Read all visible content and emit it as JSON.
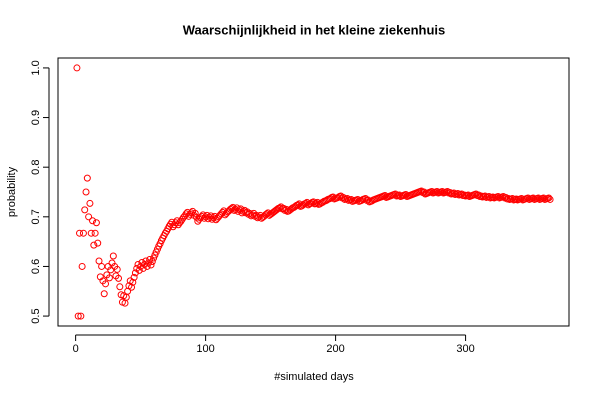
{
  "chart_data": {
    "type": "scatter",
    "title": "Waarschijnlijkheid in het kleine ziekenhuis",
    "x_label": "#simulated days",
    "y_label": "probability",
    "color": "#ff0000",
    "xlim": [
      -13.56,
      379.56
    ],
    "ylim": [
      0.48,
      1.02
    ],
    "xticks": [
      0,
      100,
      200,
      300
    ],
    "yticks": [
      0.5,
      0.6,
      0.7,
      0.8,
      0.9,
      {
        "value": 1,
        "label": "1.0"
      }
    ],
    "x": [
      1,
      2,
      3,
      4,
      5,
      6,
      7,
      8,
      9,
      10,
      11,
      12,
      13,
      14,
      15,
      16,
      17,
      18,
      19,
      20,
      21,
      22,
      23,
      24,
      25,
      26,
      27,
      28,
      29,
      30,
      31,
      32,
      33,
      34,
      35,
      36,
      37,
      38,
      39,
      40,
      41,
      42,
      43,
      44,
      45,
      46,
      47,
      48,
      49,
      50,
      51,
      52,
      53,
      54,
      55,
      56,
      57,
      58,
      59,
      60,
      61,
      62,
      63,
      64,
      65,
      66,
      67,
      68,
      69,
      70,
      71,
      72,
      73,
      74,
      75,
      76,
      77,
      78,
      79,
      80,
      81,
      82,
      83,
      84,
      85,
      86,
      87,
      88,
      89,
      90,
      91,
      92,
      93,
      94,
      95,
      96,
      97,
      98,
      99,
      100,
      101,
      102,
      103,
      104,
      105,
      106,
      107,
      108,
      109,
      110,
      111,
      112,
      113,
      114,
      115,
      116,
      117,
      118,
      119,
      120,
      121,
      122,
      123,
      124,
      125,
      126,
      127,
      128,
      129,
      130,
      131,
      132,
      133,
      134,
      135,
      136,
      137,
      138,
      139,
      140,
      141,
      142,
      143,
      144,
      145,
      146,
      147,
      148,
      149,
      150,
      151,
      152,
      153,
      154,
      155,
      156,
      157,
      158,
      159,
      160,
      161,
      162,
      163,
      164,
      165,
      166,
      167,
      168,
      169,
      170,
      171,
      172,
      173,
      174,
      175,
      176,
      177,
      178,
      179,
      180,
      181,
      182,
      183,
      184,
      185,
      186,
      187,
      188,
      189,
      190,
      191,
      192,
      193,
      194,
      195,
      196,
      197,
      198,
      199,
      200,
      201,
      202,
      203,
      204,
      205,
      206,
      207,
      208,
      209,
      210,
      211,
      212,
      213,
      214,
      215,
      216,
      217,
      218,
      219,
      220,
      221,
      222,
      223,
      224,
      225,
      226,
      227,
      228,
      229,
      230,
      231,
      232,
      233,
      234,
      235,
      236,
      237,
      238,
      239,
      240,
      241,
      242,
      243,
      244,
      245,
      246,
      247,
      248,
      249,
      250,
      251,
      252,
      253,
      254,
      255,
      256,
      257,
      258,
      259,
      260,
      261,
      262,
      263,
      264,
      265,
      266,
      267,
      268,
      269,
      270,
      271,
      272,
      273,
      274,
      275,
      276,
      277,
      278,
      279,
      280,
      281,
      282,
      283,
      284,
      285,
      286,
      287,
      288,
      289,
      290,
      291,
      292,
      293,
      294,
      295,
      296,
      297,
      298,
      299,
      300,
      301,
      302,
      303,
      304,
      305,
      306,
      307,
      308,
      309,
      310,
      311,
      312,
      313,
      314,
      315,
      316,
      317,
      318,
      319,
      320,
      321,
      322,
      323,
      324,
      325,
      326,
      327,
      328,
      329,
      330,
      331,
      332,
      333,
      334,
      335,
      336,
      337,
      338,
      339,
      340,
      341,
      342,
      343,
      344,
      345,
      346,
      347,
      348,
      349,
      350,
      351,
      352,
      353,
      354,
      355,
      356,
      357,
      358,
      359,
      360,
      361,
      362,
      363,
      364,
      365
    ],
    "values": [
      1.0,
      0.5,
      0.667,
      0.5,
      0.6,
      0.667,
      0.714,
      0.75,
      0.778,
      0.7,
      0.727,
      0.667,
      0.692,
      0.643,
      0.667,
      0.688,
      0.647,
      0.611,
      0.579,
      0.6,
      0.571,
      0.545,
      0.565,
      0.583,
      0.6,
      0.577,
      0.593,
      0.607,
      0.621,
      0.6,
      0.581,
      0.594,
      0.576,
      0.559,
      0.543,
      0.528,
      0.541,
      0.526,
      0.538,
      0.55,
      0.561,
      0.571,
      0.558,
      0.568,
      0.578,
      0.587,
      0.596,
      0.604,
      0.592,
      0.6,
      0.608,
      0.596,
      0.604,
      0.611,
      0.6,
      0.607,
      0.614,
      0.603,
      0.61,
      0.617,
      0.623,
      0.629,
      0.635,
      0.641,
      0.646,
      0.652,
      0.657,
      0.662,
      0.667,
      0.671,
      0.676,
      0.681,
      0.685,
      0.689,
      0.68,
      0.684,
      0.688,
      0.692,
      0.684,
      0.688,
      0.691,
      0.695,
      0.699,
      0.702,
      0.706,
      0.709,
      0.701,
      0.705,
      0.708,
      0.711,
      0.703,
      0.707,
      0.699,
      0.691,
      0.695,
      0.698,
      0.701,
      0.704,
      0.697,
      0.7,
      0.703,
      0.696,
      0.699,
      0.702,
      0.695,
      0.698,
      0.701,
      0.694,
      0.697,
      0.7,
      0.703,
      0.706,
      0.709,
      0.712,
      0.704,
      0.707,
      0.71,
      0.712,
      0.715,
      0.717,
      0.719,
      0.713,
      0.715,
      0.718,
      0.711,
      0.714,
      0.716,
      0.708,
      0.711,
      0.713,
      0.708,
      0.71,
      0.705,
      0.707,
      0.702,
      0.704,
      0.707,
      0.701,
      0.703,
      0.698,
      0.7,
      0.703,
      0.697,
      0.699,
      0.701,
      0.704,
      0.706,
      0.708,
      0.703,
      0.705,
      0.707,
      0.709,
      0.711,
      0.713,
      0.715,
      0.717,
      0.718,
      0.72,
      0.716,
      0.717,
      0.713,
      0.715,
      0.711,
      0.712,
      0.714,
      0.716,
      0.718,
      0.719,
      0.721,
      0.723,
      0.724,
      0.726,
      0.721,
      0.722,
      0.724,
      0.726,
      0.727,
      0.729,
      0.724,
      0.726,
      0.727,
      0.729,
      0.73,
      0.726,
      0.727,
      0.729,
      0.725,
      0.726,
      0.728,
      0.729,
      0.731,
      0.732,
      0.733,
      0.735,
      0.736,
      0.737,
      0.739,
      0.74,
      0.736,
      0.737,
      0.738,
      0.739,
      0.741,
      0.742,
      0.738,
      0.739,
      0.735,
      0.736,
      0.737,
      0.733,
      0.734,
      0.735,
      0.731,
      0.732,
      0.733,
      0.734,
      0.735,
      0.731,
      0.732,
      0.733,
      0.735,
      0.736,
      0.737,
      0.733,
      0.734,
      0.73,
      0.731,
      0.732,
      0.734,
      0.735,
      0.736,
      0.737,
      0.738,
      0.739,
      0.74,
      0.741,
      0.742,
      0.743,
      0.739,
      0.74,
      0.741,
      0.742,
      0.743,
      0.744,
      0.745,
      0.746,
      0.742,
      0.743,
      0.744,
      0.741,
      0.742,
      0.743,
      0.744,
      0.745,
      0.741,
      0.742,
      0.743,
      0.744,
      0.745,
      0.746,
      0.747,
      0.748,
      0.749,
      0.75,
      0.751,
      0.752,
      0.749,
      0.75,
      0.746,
      0.747,
      0.748,
      0.749,
      0.75,
      0.751,
      0.748,
      0.749,
      0.75,
      0.751,
      0.748,
      0.749,
      0.75,
      0.751,
      0.748,
      0.749,
      0.75,
      0.751,
      0.748,
      0.749,
      0.746,
      0.747,
      0.748,
      0.745,
      0.746,
      0.747,
      0.744,
      0.745,
      0.746,
      0.743,
      0.744,
      0.742,
      0.743,
      0.744,
      0.741,
      0.742,
      0.743,
      0.744,
      0.745,
      0.746,
      0.743,
      0.744,
      0.741,
      0.742,
      0.74,
      0.741,
      0.742,
      0.739,
      0.74,
      0.741,
      0.738,
      0.739,
      0.74,
      0.738,
      0.739,
      0.74,
      0.741,
      0.738,
      0.739,
      0.74,
      0.741,
      0.738,
      0.739,
      0.736,
      0.737,
      0.735,
      0.736,
      0.737,
      0.734,
      0.735,
      0.736,
      0.734,
      0.735,
      0.736,
      0.737,
      0.734,
      0.735,
      0.736,
      0.737,
      0.738,
      0.735,
      0.736,
      0.737,
      0.738,
      0.735,
      0.736,
      0.737,
      0.738,
      0.735,
      0.736,
      0.737,
      0.738,
      0.735,
      0.736,
      0.737,
      0.738,
      0.735
    ]
  }
}
